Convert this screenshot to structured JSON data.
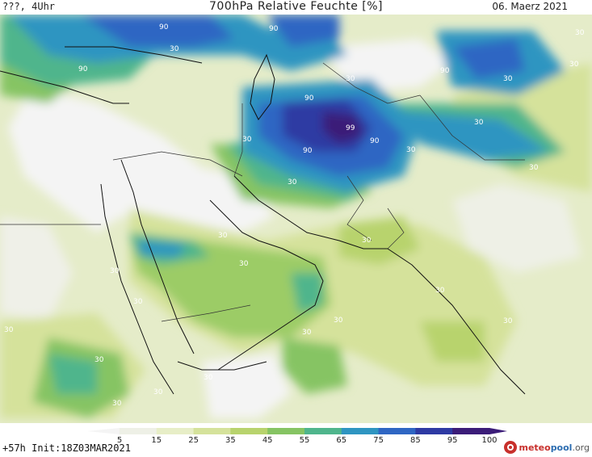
{
  "header": {
    "left": "???, 4Uhr",
    "title": "700hPa Relative Feuchte [%]",
    "date": "06. Maerz 2021"
  },
  "colorbar": {
    "ticks": [
      "5",
      "15",
      "25",
      "35",
      "45",
      "55",
      "65",
      "75",
      "85",
      "95",
      "100"
    ],
    "colors": [
      "#f4f4f4",
      "#eef0e6",
      "#e7eec7",
      "#d5e29b",
      "#b8d36d",
      "#86c463",
      "#4fb58c",
      "#2f95c1",
      "#2f66c3",
      "#2e3aa3",
      "#3b1c78"
    ]
  },
  "contour_labels": [
    "90",
    "90",
    "90",
    "30",
    "90",
    "30",
    "30",
    "30",
    "90",
    "90",
    "99",
    "90",
    "30",
    "30",
    "30",
    "30",
    "30",
    "30",
    "30",
    "30",
    "30",
    "30",
    "30",
    "30",
    "30",
    "30",
    "30",
    "30",
    "30",
    "30",
    "30",
    "30"
  ],
  "footer": {
    "run": "+57h Init:18Z03MAR2021",
    "brand_primary": "meteo",
    "brand_secondary": "pool",
    "brand_suffix": ".org"
  }
}
